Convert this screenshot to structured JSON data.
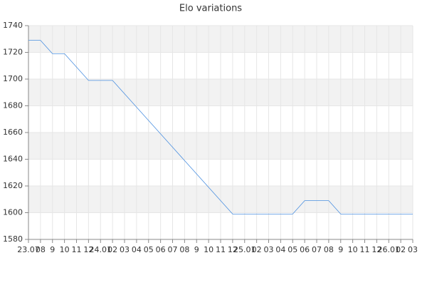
{
  "chart_data": {
    "type": "line",
    "title": "Elo variations",
    "categories": [
      "23.07",
      "08",
      "9",
      "10",
      "11",
      "12",
      "24.01",
      "02",
      "03",
      "04",
      "05",
      "06",
      "07",
      "08",
      "9",
      "10",
      "11",
      "12",
      "25.01",
      "02",
      "03",
      "04",
      "05",
      "06",
      "07",
      "08",
      "9",
      "10",
      "11",
      "12",
      "26.01",
      "02",
      "03"
    ],
    "series": [
      {
        "name": "Elo",
        "color": "#4a8fe0",
        "values": [
          1729,
          1729,
          1719,
          1719,
          1709,
          1699,
          1699,
          1699,
          1689,
          1679,
          1669,
          1659,
          1649,
          1639,
          1629,
          1619,
          1609,
          1599,
          1599,
          1599,
          1599,
          1599,
          1599,
          1609,
          1609,
          1609,
          1599,
          1599,
          1599,
          1599,
          1599,
          1599,
          1599
        ]
      }
    ],
    "ylim": [
      1580,
      1740
    ],
    "yticks": [
      1580,
      1600,
      1620,
      1640,
      1660,
      1680,
      1700,
      1720,
      1740
    ],
    "grid": true,
    "bands": true
  }
}
